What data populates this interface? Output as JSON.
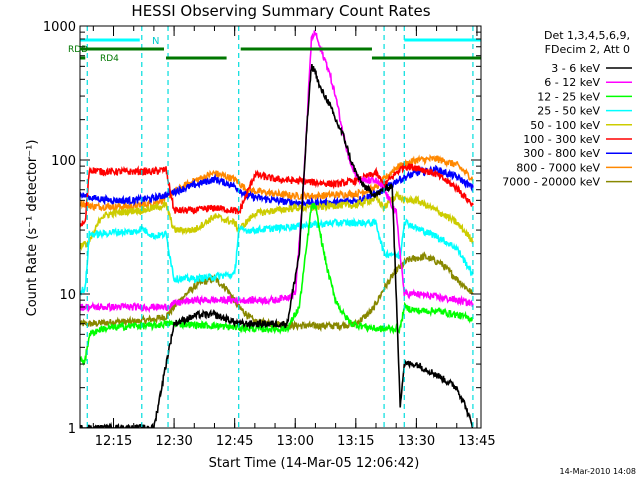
{
  "chart_data": {
    "type": "line",
    "title": "HESSI Observing Summary Count Rates",
    "xlabel": "Start Time (14-Mar-05 12:06:42)",
    "ylabel": "Count Rate (s⁻¹ detector⁻¹)",
    "y_scale": "log",
    "ylim": [
      1,
      1000
    ],
    "xlim": [
      "12:06:42",
      "13:46:00"
    ],
    "x_ticks": [
      "12:15",
      "12:30",
      "12:45",
      "13:00",
      "13:15",
      "13:30",
      "13:45"
    ],
    "y_ticks": [
      "1",
      "10",
      "100",
      "1000"
    ],
    "legend_header": [
      "Det 1,3,4,5,6,9,",
      "FDecim 2, Att 0"
    ],
    "legend_position": "outside-right",
    "footer_text": "14-Mar-2010 14:08",
    "annotations": {
      "n_label": "N",
      "rdd_label": "RDD",
      "rd4_label": "RD4"
    },
    "bars": {
      "n": [
        [
          "12:06:42",
          "12:21:30"
        ],
        [
          "13:27:00",
          "13:46:00"
        ]
      ],
      "rdd": [
        [
          "12:06:42",
          "12:27:30"
        ],
        [
          "12:46:30",
          "13:19:00"
        ]
      ],
      "rd4": [
        [
          "12:06:42",
          "12:08:00"
        ],
        [
          "12:28:00",
          "12:43:00"
        ],
        [
          "13:19:00",
          "13:46:00"
        ]
      ]
    },
    "vlines": [
      "12:08:30",
      "12:22:00",
      "12:28:30",
      "12:46:00",
      "13:22:00",
      "13:27:00",
      "13:44:00"
    ],
    "series": [
      {
        "name": "3 - 6 keV",
        "color": "#000000",
        "x": [
          "12:06:42",
          "12:07:30",
          "12:10",
          "12:12",
          "12:15",
          "12:20",
          "12:22",
          "12:25",
          "12:28",
          "12:30",
          "12:33",
          "12:36",
          "12:40",
          "12:43",
          "12:46",
          "12:50",
          "12:55",
          "12:58",
          "13:01",
          "13:03",
          "13:04",
          "13:05",
          "13:06",
          "13:08",
          "13:10",
          "13:12",
          "13:14",
          "13:16",
          "13:18",
          "13:20",
          "13:22",
          "13:24",
          "13:26",
          "13:27",
          "13:30",
          "13:35",
          "13:40",
          "13:42",
          "13:44"
        ],
        "y": [
          1.0,
          1.0,
          1.0,
          1.0,
          1.0,
          1.0,
          1.0,
          1.0,
          3,
          6,
          6.5,
          7,
          7,
          6.5,
          6,
          6,
          6,
          6,
          20,
          200,
          500,
          460,
          350,
          280,
          200,
          150,
          95,
          70,
          60,
          55,
          60,
          65,
          1.5,
          3,
          3,
          2.5,
          2,
          1.5,
          1.0
        ]
      },
      {
        "name": "6 - 12 keV",
        "color": "#ff00ff",
        "x": [
          "12:06:42",
          "12:10",
          "12:15",
          "12:20",
          "12:25",
          "12:28",
          "12:30",
          "12:35",
          "12:40",
          "12:45",
          "12:50",
          "12:55",
          "13:00",
          "13:02",
          "13:04",
          "13:05",
          "13:06",
          "13:08",
          "13:10",
          "13:12",
          "13:14",
          "13:16",
          "13:18",
          "13:20",
          "13:22",
          "13:25",
          "13:27",
          "13:30",
          "13:35",
          "13:40",
          "13:44"
        ],
        "y": [
          8,
          8,
          8,
          8,
          8,
          8,
          8.5,
          9,
          9,
          9,
          9,
          9,
          10,
          60,
          800,
          900,
          700,
          500,
          300,
          150,
          90,
          70,
          70,
          70,
          60,
          40,
          10,
          10,
          9.5,
          9,
          8.5
        ]
      },
      {
        "name": "12 - 25 keV",
        "color": "#00ff00",
        "x": [
          "12:06:42",
          "12:08",
          "12:09",
          "12:12",
          "12:20",
          "12:25",
          "12:28",
          "12:30",
          "12:40",
          "12:50",
          "12:58",
          "13:01",
          "13:03",
          "13:04",
          "13:05",
          "13:06",
          "13:08",
          "13:10",
          "13:12",
          "13:14",
          "13:20",
          "13:26",
          "13:27",
          "13:30",
          "13:35",
          "13:40",
          "13:44"
        ],
        "y": [
          3.2,
          3.2,
          5,
          5.5,
          5.8,
          5.8,
          6,
          6,
          5.8,
          5.5,
          5.5,
          8,
          25,
          45,
          45,
          30,
          15,
          9,
          7,
          6,
          5.5,
          5.5,
          8,
          7.5,
          7.5,
          7,
          6.5
        ]
      },
      {
        "name": "25 - 50 keV",
        "color": "#00ffff",
        "x": [
          "12:06:42",
          "12:08",
          "12:09",
          "12:12",
          "12:15",
          "12:20",
          "12:22",
          "12:25",
          "12:28",
          "12:30",
          "12:35",
          "12:40",
          "12:45",
          "12:46",
          "12:50",
          "12:55",
          "13:00",
          "13:05",
          "13:10",
          "13:15",
          "13:20",
          "13:22",
          "13:24",
          "13:26",
          "13:27",
          "13:30",
          "13:35",
          "13:40",
          "13:44"
        ],
        "y": [
          10.5,
          11,
          28,
          28,
          29,
          29,
          31,
          27,
          28,
          13,
          13,
          13.5,
          14,
          30,
          30,
          31,
          32,
          33,
          34,
          34,
          34,
          20,
          20,
          19,
          35,
          31,
          27,
          22,
          14
        ]
      },
      {
        "name": "50 - 100 keV",
        "color": "#cccc00",
        "x": [
          "12:06:42",
          "12:09",
          "12:12",
          "12:15",
          "12:20",
          "12:22",
          "12:25",
          "12:28",
          "12:30",
          "12:35",
          "12:40",
          "12:45",
          "12:46",
          "12:50",
          "12:55",
          "13:00",
          "13:05",
          "13:10",
          "13:15",
          "13:20",
          "13:22",
          "13:25",
          "13:27",
          "13:30",
          "13:35",
          "13:40",
          "13:44"
        ],
        "y": [
          23,
          24,
          38,
          40,
          42,
          42,
          44,
          46,
          30,
          30,
          38,
          34,
          30,
          40,
          42,
          44,
          44,
          46,
          46,
          52,
          44,
          55,
          50,
          50,
          42,
          34,
          25
        ]
      },
      {
        "name": "100 - 300 keV",
        "color": "#ff0000",
        "x": [
          "12:06:42",
          "12:08",
          "12:09",
          "12:12",
          "12:15",
          "12:20",
          "12:25",
          "12:28",
          "12:30",
          "12:35",
          "12:40",
          "12:45",
          "12:46",
          "12:50",
          "12:55",
          "13:00",
          "13:05",
          "13:10",
          "13:15",
          "13:20",
          "13:22",
          "13:25",
          "13:27",
          "13:30",
          "13:35",
          "13:40",
          "13:44"
        ],
        "y": [
          33,
          34,
          85,
          82,
          82,
          82,
          82,
          85,
          42,
          42,
          44,
          42,
          40,
          78,
          72,
          70,
          68,
          66,
          70,
          80,
          65,
          80,
          90,
          88,
          78,
          62,
          46
        ]
      },
      {
        "name": "300 - 800 keV",
        "color": "#0000ff",
        "x": [
          "12:06:42",
          "12:10",
          "12:15",
          "12:20",
          "12:25",
          "12:28",
          "12:30",
          "12:35",
          "12:40",
          "12:45",
          "12:48",
          "12:55",
          "13:00",
          "13:05",
          "13:10",
          "13:15",
          "13:20",
          "13:22",
          "13:25",
          "13:30",
          "13:35",
          "13:40",
          "13:44"
        ],
        "y": [
          55,
          52,
          50,
          50,
          52,
          55,
          58,
          65,
          72,
          64,
          54,
          50,
          48,
          48,
          48,
          50,
          56,
          60,
          70,
          80,
          85,
          75,
          62
        ]
      },
      {
        "name": "800 - 7000 keV",
        "color": "#ff8800",
        "x": [
          "12:06:42",
          "12:10",
          "12:15",
          "12:20",
          "12:25",
          "12:28",
          "12:30",
          "12:35",
          "12:40",
          "12:45",
          "12:48",
          "12:55",
          "13:00",
          "13:05",
          "13:10",
          "13:15",
          "13:20",
          "13:22",
          "13:25",
          "13:30",
          "13:35",
          "13:40",
          "13:44"
        ],
        "y": [
          48,
          45,
          45,
          45,
          48,
          52,
          58,
          70,
          80,
          72,
          60,
          56,
          54,
          54,
          55,
          56,
          62,
          72,
          88,
          100,
          102,
          92,
          72
        ]
      },
      {
        "name": "7000 - 20000 keV",
        "color": "#888800",
        "x": [
          "12:06:42",
          "12:10",
          "12:15",
          "12:20",
          "12:25",
          "12:28",
          "12:30",
          "12:33",
          "12:36",
          "12:40",
          "12:43",
          "12:46",
          "12:50",
          "12:55",
          "13:00",
          "13:05",
          "13:10",
          "13:15",
          "13:19",
          "13:22",
          "13:25",
          "13:28",
          "13:32",
          "13:36",
          "13:40",
          "13:44"
        ],
        "y": [
          6,
          6,
          6.2,
          6.2,
          6.5,
          6.8,
          8,
          10,
          12,
          13,
          11,
          8,
          6.2,
          6,
          5.8,
          5.8,
          5.8,
          6,
          7.5,
          11,
          15,
          18,
          19,
          17,
          13,
          10
        ]
      }
    ]
  }
}
